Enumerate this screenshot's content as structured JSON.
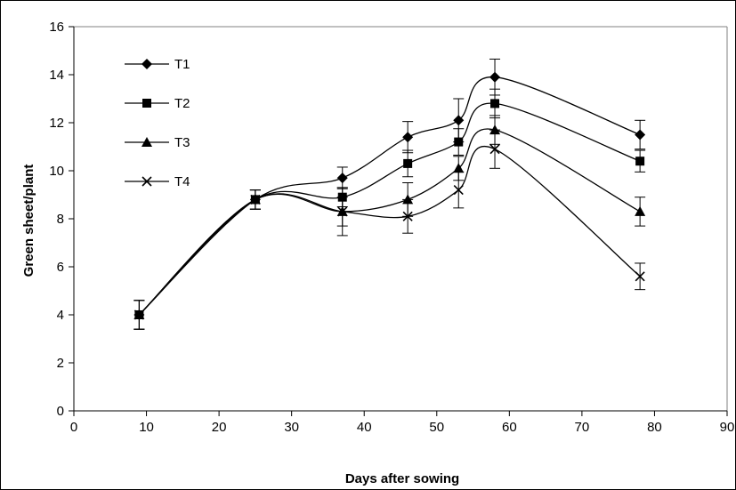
{
  "chart_data": {
    "type": "line",
    "title": "",
    "xlabel": "Days after sowing",
    "ylabel": "Green sheet/plant",
    "xlim": [
      0,
      90
    ],
    "ylim": [
      0,
      16
    ],
    "xticks": [
      "0",
      "10",
      "20",
      "30",
      "40",
      "50",
      "60",
      "70",
      "80",
      "90"
    ],
    "yticks": [
      "0",
      "2",
      "4",
      "6",
      "8",
      "10",
      "12",
      "14",
      "16"
    ],
    "grid": false,
    "legend": "top-left",
    "x": [
      9,
      25,
      37,
      46,
      53,
      58,
      78
    ],
    "series": [
      {
        "name": "T1",
        "marker": "diamond",
        "y": [
          4.0,
          8.8,
          9.7,
          11.4,
          12.1,
          13.9,
          11.5
        ],
        "err": [
          0.6,
          0.4,
          0.45,
          0.65,
          0.9,
          0.75,
          0.6
        ]
      },
      {
        "name": "T2",
        "marker": "square",
        "y": [
          4.0,
          8.8,
          8.9,
          10.3,
          11.2,
          12.8,
          10.4
        ],
        "err": [
          0.6,
          0.4,
          0.4,
          0.55,
          0.55,
          0.6,
          0.45
        ]
      },
      {
        "name": "T3",
        "marker": "triangle",
        "y": [
          4.0,
          8.8,
          8.3,
          8.8,
          10.1,
          11.7,
          8.3
        ],
        "err": [
          0.6,
          0.4,
          0.6,
          0.7,
          0.5,
          0.6,
          0.6
        ]
      },
      {
        "name": "T4",
        "marker": "x",
        "y": [
          4.0,
          8.8,
          8.3,
          8.1,
          9.2,
          10.9,
          5.6
        ],
        "err": [
          0.6,
          0.4,
          1.0,
          0.7,
          0.75,
          0.8,
          0.55
        ]
      }
    ],
    "colors": {
      "line": "#000000",
      "plot_border": "#808080",
      "page_border": "#000000"
    }
  }
}
